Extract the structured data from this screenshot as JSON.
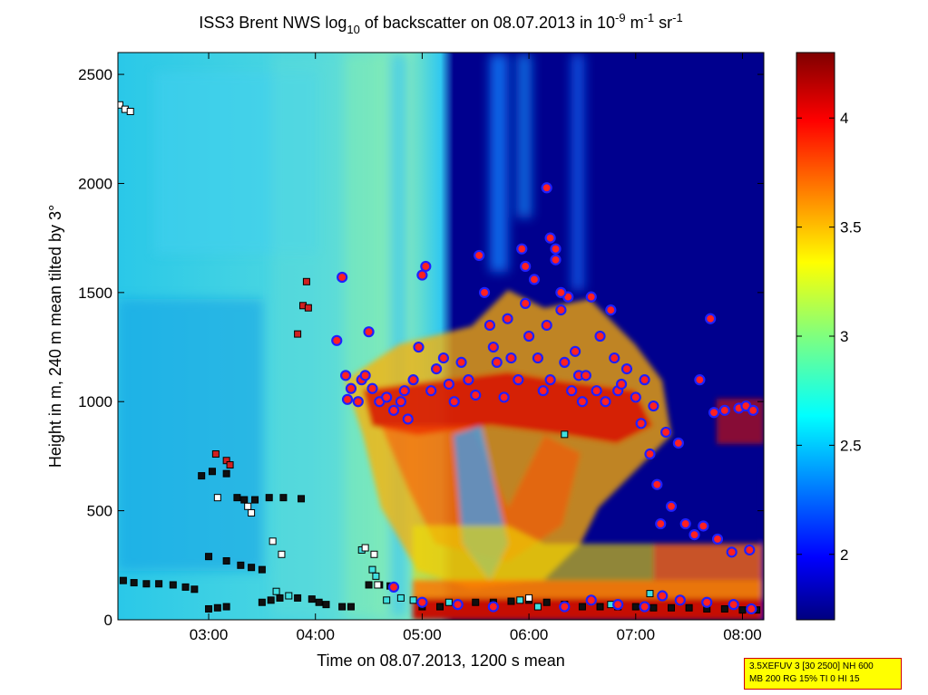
{
  "chart_data": {
    "type": "heatmap",
    "title_parts": {
      "pre": "ISS3 Brent NWS log",
      "sub": "10",
      "mid": " of backscatter on 08.07.2013 in 10",
      "sup1": "-9",
      "unit_m": " m",
      "sup2": "-1",
      "unit_sr": " sr",
      "sup3": "-1"
    },
    "xlabel": "Time on 08.07.2013, 1200 s mean",
    "ylabel": "Height in m, 240 m mean tilted by 3°",
    "x_axis": {
      "range": [
        "02:09",
        "08:12"
      ],
      "ticks": [
        "03:00",
        "04:00",
        "05:00",
        "06:00",
        "07:00",
        "08:00"
      ]
    },
    "y_axis": {
      "range": [
        0,
        2600
      ],
      "ticks": [
        "0",
        "500",
        "1000",
        "1500",
        "2000",
        "2500"
      ]
    },
    "colorbar": {
      "range": [
        1.7,
        4.3
      ],
      "ticks": [
        "2",
        "2.5",
        "3",
        "3.5",
        "4"
      ],
      "colormap": "jet"
    },
    "grid": false,
    "layers": [
      {
        "name": "backscatter_field",
        "description_values": "log10 backscatter 1.7–4.3"
      },
      {
        "name": "cloud_base_markers",
        "marker": "circle",
        "fill": "#ff2020",
        "edge": "#2020ff"
      },
      {
        "name": "layer_height_markers_cyan",
        "marker": "square",
        "fill": "#40e0e0",
        "edge": "#000000"
      },
      {
        "name": "layer_height_markers_white",
        "marker": "square",
        "fill": "#ffffff",
        "edge": "#000000"
      },
      {
        "name": "layer_height_markers_red",
        "marker": "square",
        "fill": "#d02020",
        "edge": "#000000"
      }
    ],
    "circle_points": [
      [
        "04:12",
        1280
      ],
      [
        "04:15",
        1570
      ],
      [
        "04:17",
        1120
      ],
      [
        "04:18",
        1010
      ],
      [
        "04:20",
        1060
      ],
      [
        "04:24",
        1000
      ],
      [
        "04:26",
        1100
      ],
      [
        "04:28",
        1120
      ],
      [
        "04:30",
        1320
      ],
      [
        "04:32",
        1060
      ],
      [
        "04:36",
        1000
      ],
      [
        "04:40",
        1020
      ],
      [
        "04:44",
        960
      ],
      [
        "04:48",
        1000
      ],
      [
        "04:50",
        1050
      ],
      [
        "04:52",
        920
      ],
      [
        "04:55",
        1100
      ],
      [
        "04:58",
        1250
      ],
      [
        "05:00",
        1580
      ],
      [
        "05:02",
        1620
      ],
      [
        "05:05",
        1050
      ],
      [
        "05:08",
        1150
      ],
      [
        "05:12",
        1200
      ],
      [
        "05:15",
        1080
      ],
      [
        "05:18",
        1000
      ],
      [
        "05:22",
        1180
      ],
      [
        "05:26",
        1100
      ],
      [
        "05:30",
        1030
      ],
      [
        "05:32",
        1670
      ],
      [
        "05:35",
        1500
      ],
      [
        "05:38",
        1350
      ],
      [
        "05:40",
        1250
      ],
      [
        "05:42",
        1180
      ],
      [
        "05:46",
        1020
      ],
      [
        "05:48",
        1380
      ],
      [
        "05:50",
        1200
      ],
      [
        "05:54",
        1100
      ],
      [
        "05:56",
        1700
      ],
      [
        "05:58",
        1450
      ],
      [
        "06:00",
        1300
      ],
      [
        "06:03",
        1560
      ],
      [
        "06:05",
        1200
      ],
      [
        "06:08",
        1050
      ],
      [
        "06:10",
        1350
      ],
      [
        "06:12",
        1100
      ],
      [
        "06:15",
        1700
      ],
      [
        "06:18",
        1420
      ],
      [
        "06:20",
        1180
      ],
      [
        "06:22",
        1480
      ],
      [
        "06:24",
        1050
      ],
      [
        "06:26",
        1230
      ],
      [
        "06:28",
        1120
      ],
      [
        "06:30",
        1000
      ],
      [
        "06:32",
        1120
      ],
      [
        "06:35",
        1480
      ],
      [
        "06:38",
        1050
      ],
      [
        "06:40",
        1300
      ],
      [
        "06:43",
        1000
      ],
      [
        "06:46",
        1420
      ],
      [
        "06:48",
        1200
      ],
      [
        "06:50",
        1050
      ],
      [
        "06:52",
        1080
      ],
      [
        "06:55",
        1150
      ],
      [
        "07:00",
        1020
      ],
      [
        "07:03",
        900
      ],
      [
        "07:05",
        1100
      ],
      [
        "07:08",
        760
      ],
      [
        "07:10",
        980
      ],
      [
        "07:12",
        620
      ],
      [
        "07:14",
        440
      ],
      [
        "07:17",
        860
      ],
      [
        "07:20",
        520
      ],
      [
        "07:24",
        810
      ],
      [
        "07:28",
        440
      ],
      [
        "07:33",
        390
      ],
      [
        "07:36",
        1100
      ],
      [
        "07:38",
        430
      ],
      [
        "07:42",
        1380
      ],
      [
        "07:44",
        950
      ],
      [
        "07:46",
        370
      ],
      [
        "07:50",
        960
      ],
      [
        "07:54",
        310
      ],
      [
        "07:58",
        970
      ],
      [
        "08:02",
        980
      ],
      [
        "08:04",
        320
      ],
      [
        "08:06",
        960
      ],
      [
        "06:10",
        1980
      ],
      [
        "06:12",
        1750
      ],
      [
        "06:15",
        1650
      ],
      [
        "05:58",
        1620
      ],
      [
        "06:18",
        1500
      ],
      [
        "04:44",
        150
      ],
      [
        "05:00",
        80
      ],
      [
        "05:20",
        70
      ],
      [
        "05:40",
        60
      ],
      [
        "06:20",
        60
      ],
      [
        "06:35",
        90
      ],
      [
        "06:50",
        70
      ],
      [
        "07:05",
        60
      ],
      [
        "07:15",
        110
      ],
      [
        "07:25",
        90
      ],
      [
        "07:40",
        80
      ],
      [
        "07:55",
        70
      ],
      [
        "08:05",
        50
      ]
    ],
    "square_points_black": [
      [
        "02:12",
        180
      ],
      [
        "02:18",
        170
      ],
      [
        "02:25",
        165
      ],
      [
        "02:32",
        165
      ],
      [
        "02:40",
        160
      ],
      [
        "02:47",
        150
      ],
      [
        "02:52",
        140
      ],
      [
        "02:56",
        660
      ],
      [
        "03:02",
        680
      ],
      [
        "03:10",
        670
      ],
      [
        "03:16",
        560
      ],
      [
        "03:20",
        550
      ],
      [
        "03:26",
        550
      ],
      [
        "03:34",
        560
      ],
      [
        "03:42",
        560
      ],
      [
        "03:52",
        555
      ],
      [
        "03:00",
        290
      ],
      [
        "03:10",
        270
      ],
      [
        "03:18",
        250
      ],
      [
        "03:24",
        240
      ],
      [
        "03:30",
        230
      ],
      [
        "03:00",
        50
      ],
      [
        "03:05",
        55
      ],
      [
        "03:10",
        60
      ],
      [
        "03:30",
        80
      ],
      [
        "03:35",
        90
      ],
      [
        "03:40",
        100
      ],
      [
        "03:50",
        100
      ],
      [
        "03:58",
        95
      ],
      [
        "04:02",
        80
      ],
      [
        "04:06",
        70
      ],
      [
        "04:15",
        60
      ],
      [
        "04:20",
        60
      ],
      [
        "04:30",
        160
      ],
      [
        "04:36",
        160
      ],
      [
        "04:42",
        155
      ],
      [
        "05:00",
        60
      ],
      [
        "05:10",
        60
      ],
      [
        "05:20",
        70
      ],
      [
        "05:30",
        80
      ],
      [
        "05:40",
        80
      ],
      [
        "05:50",
        85
      ],
      [
        "06:00",
        90
      ],
      [
        "06:10",
        80
      ],
      [
        "06:20",
        70
      ],
      [
        "06:30",
        60
      ],
      [
        "06:40",
        60
      ],
      [
        "06:50",
        60
      ],
      [
        "07:00",
        60
      ],
      [
        "07:10",
        55
      ],
      [
        "07:20",
        55
      ],
      [
        "07:30",
        55
      ],
      [
        "07:40",
        50
      ],
      [
        "07:50",
        50
      ],
      [
        "08:00",
        45
      ],
      [
        "08:08",
        45
      ]
    ],
    "square_points_cyan": [
      [
        "03:38",
        130
      ],
      [
        "03:45",
        110
      ],
      [
        "04:26",
        320
      ],
      [
        "04:32",
        230
      ],
      [
        "04:34",
        200
      ],
      [
        "04:40",
        90
      ],
      [
        "04:48",
        100
      ],
      [
        "04:55",
        90
      ],
      [
        "05:15",
        80
      ],
      [
        "05:55",
        90
      ],
      [
        "06:05",
        60
      ],
      [
        "06:20",
        850
      ],
      [
        "06:46",
        70
      ],
      [
        "07:08",
        120
      ]
    ],
    "square_points_white": [
      [
        "02:10",
        2360
      ],
      [
        "02:13",
        2340
      ],
      [
        "02:16",
        2330
      ],
      [
        "03:22",
        520
      ],
      [
        "03:24",
        490
      ],
      [
        "03:05",
        560
      ],
      [
        "03:36",
        360
      ],
      [
        "03:41",
        300
      ],
      [
        "04:28",
        330
      ],
      [
        "04:33",
        300
      ],
      [
        "04:35",
        160
      ],
      [
        "04:44",
        150
      ],
      [
        "05:40",
        70
      ],
      [
        "06:00",
        100
      ]
    ],
    "square_points_red": [
      [
        "03:04",
        760
      ],
      [
        "03:10",
        730
      ],
      [
        "03:12",
        710
      ],
      [
        "03:50",
        1310
      ],
      [
        "03:53",
        1440
      ],
      [
        "03:55",
        1550
      ],
      [
        "03:56",
        1430
      ]
    ],
    "info_box": {
      "line1": "3.5XEFUV 3 [30 2500] NH 600",
      "line2": "MB 200 RG 15% TI 0 HI 15"
    }
  }
}
